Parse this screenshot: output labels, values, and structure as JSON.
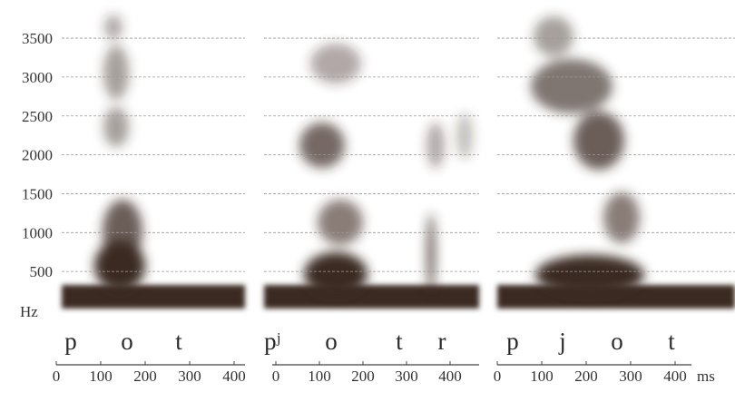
{
  "y_axis": {
    "ticks": [
      500,
      1000,
      1500,
      2000,
      2500,
      3000,
      3500
    ],
    "unit": "Hz"
  },
  "panels": [
    {
      "phonemes": [
        "p",
        "o",
        "t"
      ],
      "xticks": [
        0,
        100,
        200,
        300,
        400
      ]
    },
    {
      "phonemes": [
        "pʲ",
        "o",
        "t",
        "r"
      ],
      "xticks": [
        0,
        100,
        200,
        300,
        400
      ]
    },
    {
      "phonemes": [
        "p",
        "j",
        "o",
        "t"
      ],
      "xticks": [
        0,
        100,
        200,
        300,
        400
      ]
    }
  ],
  "x_unit": "ms"
}
